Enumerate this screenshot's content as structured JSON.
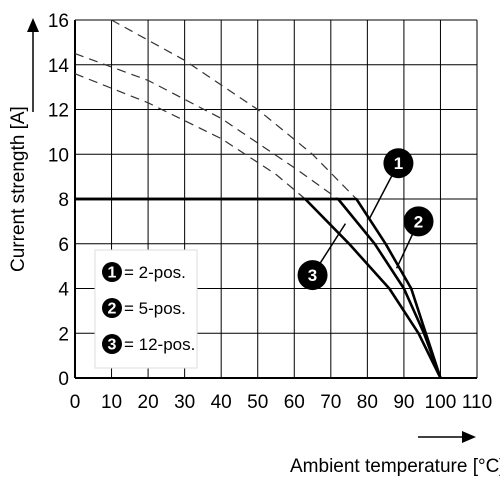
{
  "chart_data": {
    "type": "line",
    "xlabel": "Ambient temperature [°C]",
    "ylabel": "Current strength [A]",
    "xlim": [
      0,
      110
    ],
    "ylim": [
      0,
      16
    ],
    "x_ticks": [
      "0",
      "10",
      "20",
      "30",
      "40",
      "50",
      "60",
      "70",
      "80",
      "90",
      "100",
      "110"
    ],
    "y_ticks": [
      "0",
      "2",
      "4",
      "6",
      "8",
      "10",
      "12",
      "14",
      "16"
    ],
    "grid": true,
    "legend": {
      "placement": "bottom-left",
      "entries": [
        {
          "badge": "1",
          "label": "= 2-pos."
        },
        {
          "badge": "2",
          "label": "= 5-pos."
        },
        {
          "badge": "3",
          "label": "= 12-pos."
        }
      ]
    },
    "series": [
      {
        "badge": "1",
        "solid": [
          [
            0,
            8
          ],
          [
            77,
            8
          ],
          [
            85,
            6
          ],
          [
            92,
            4
          ],
          [
            96,
            2
          ],
          [
            100,
            0
          ]
        ],
        "dashed": [
          [
            10,
            16
          ],
          [
            30,
            14.2
          ],
          [
            50,
            12
          ],
          [
            65,
            10
          ],
          [
            77,
            8
          ]
        ]
      },
      {
        "badge": "2",
        "solid": [
          [
            0,
            8
          ],
          [
            72,
            8
          ],
          [
            82,
            6
          ],
          [
            90,
            4
          ],
          [
            95.5,
            2
          ],
          [
            100,
            0
          ]
        ],
        "dashed": [
          [
            0,
            14.5
          ],
          [
            20,
            13.3
          ],
          [
            40,
            11.6
          ],
          [
            60,
            9.4
          ],
          [
            72,
            8
          ]
        ]
      },
      {
        "badge": "3",
        "solid": [
          [
            0,
            8
          ],
          [
            63,
            8
          ],
          [
            75,
            6
          ],
          [
            86,
            4
          ],
          [
            94,
            2
          ],
          [
            100,
            0
          ]
        ],
        "dashed": [
          [
            0,
            13.6
          ],
          [
            20,
            12.3
          ],
          [
            40,
            10.7
          ],
          [
            55,
            9.1
          ],
          [
            63,
            8
          ]
        ]
      }
    ],
    "callouts": [
      {
        "badge": "1",
        "x": 88.5,
        "y": 9.6,
        "point_to": [
          80.5,
          7.1
        ]
      },
      {
        "badge": "2",
        "x": 94,
        "y": 7,
        "point_to": [
          88,
          4.9
        ]
      },
      {
        "badge": "3",
        "x": 65,
        "y": 4.6,
        "point_to": [
          74,
          6.9
        ]
      }
    ]
  }
}
